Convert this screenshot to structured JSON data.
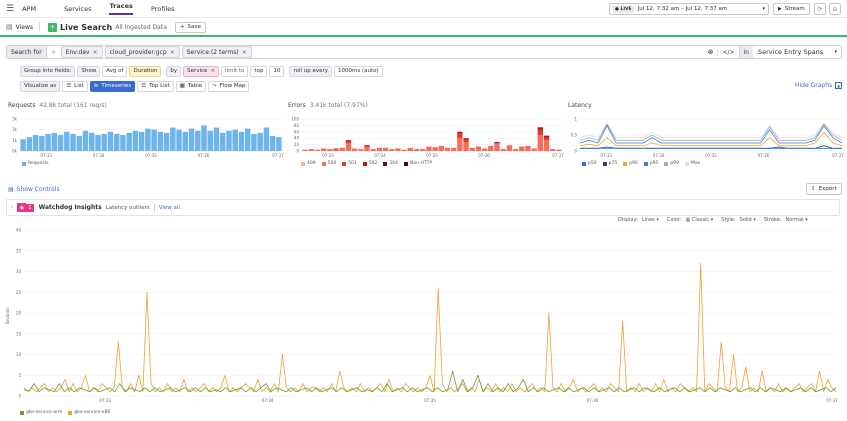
{
  "nav": {
    "app": "APM",
    "tabs": [
      "Services",
      "Traces",
      "Profiles"
    ],
    "active_tab": "Traces"
  },
  "time": {
    "live_badge": "LIVE",
    "range": "Jul 12, 7:32 am – Jul 12, 7:37 am",
    "stream_label": "Stream"
  },
  "header": {
    "views_label": "Views",
    "title": "Live Search",
    "subtitle": "All Ingested Data",
    "save_label": "Save"
  },
  "search": {
    "label": "Search for",
    "chips": [
      "Env:dev",
      "cloud_provider:gcp",
      "Service:(2 terms)"
    ],
    "in_label": "in",
    "scope": "Service Entry Spans"
  },
  "query": {
    "group_label": "Group into fields:",
    "show_label": "Show",
    "agg": "Avg of",
    "measure": "Duration",
    "by_label": "by",
    "by_value": "Service",
    "limit_label": "limit to",
    "top_label": "top",
    "top_value": "10",
    "rollup_label": "roll up every",
    "rollup_value": "1000ms (auto)",
    "visualize_label": "Visualize as",
    "viz": [
      "List",
      "Timeseries",
      "Top List",
      "Table",
      "Flow Map"
    ],
    "viz_active": "Timeseries",
    "hide_graphs": "Hide Graphs"
  },
  "panels": {
    "requests": {
      "title": "Requests",
      "summary": "42.8k total (161 req/s)"
    },
    "errors": {
      "title": "Errors",
      "summary": "3.41k total (7.97%)"
    },
    "latency": {
      "title": "Latency"
    }
  },
  "controls": {
    "show_controls": "Show Controls",
    "export": "Export"
  },
  "insights": {
    "count": "1",
    "title": "Watchdog Insights",
    "subtitle": "Latency outliers",
    "view_all": "View all"
  },
  "display_opts": {
    "display_label": "Display:",
    "display_value": "Lines",
    "color_label": "Color:",
    "color_value": "Classic",
    "style_label": "Style:",
    "style_value": "Solid",
    "stroke_label": "Stroke:",
    "stroke_value": "Normal"
  },
  "colors": {
    "accent": "#632ca6",
    "green": "#3eba6b",
    "blue": "#3c6bd0"
  },
  "chart_data": [
    {
      "id": "requests",
      "type": "bar",
      "x_ticks": [
        "07:33",
        "07:34",
        "07:35",
        "07:36",
        "07:37"
      ],
      "y_ticks": [
        "0k",
        "1k",
        "2k",
        "3k"
      ],
      "ylim": [
        0,
        3
      ],
      "series": [
        {
          "name": "Requests",
          "color": "#6cb4ee",
          "values": [
            1.1,
            1.3,
            1.5,
            1.4,
            1.6,
            1.7,
            1.5,
            1.8,
            1.6,
            1.4,
            1.9,
            1.7,
            1.5,
            1.6,
            1.8,
            1.6,
            1.5,
            1.7,
            1.9,
            1.8,
            2.1,
            2.0,
            1.8,
            1.7,
            2.2,
            2.0,
            1.8,
            2.1,
            1.9,
            2.4,
            1.9,
            2.2,
            1.7,
            1.9,
            2.0,
            1.8,
            2.1,
            1.6,
            1.7,
            2.2,
            1.4,
            1.3
          ]
        }
      ]
    },
    {
      "id": "errors",
      "type": "bar",
      "stacked": true,
      "x_ticks": [
        "07:33",
        "07:34",
        "07:35",
        "07:36",
        "07:37"
      ],
      "y_ticks": [
        "0",
        "20",
        "40",
        "60",
        "80",
        "100"
      ],
      "ylim": [
        0,
        100
      ],
      "series": [
        {
          "name": "409",
          "color": "#f9b79b",
          "values": [
            0,
            0,
            0,
            0,
            0,
            0,
            0,
            0,
            0,
            0,
            0,
            0,
            0,
            0,
            0,
            0,
            0,
            0,
            0,
            0,
            0,
            0,
            0,
            0,
            0,
            0,
            0,
            0,
            0,
            0,
            0,
            0,
            0,
            0,
            0,
            0,
            0,
            0,
            0,
            0,
            0,
            0
          ]
        },
        {
          "name": "500",
          "color": "#f46e5b",
          "values": [
            4,
            6,
            4,
            8,
            6,
            4,
            10,
            24,
            8,
            6,
            14,
            6,
            10,
            10,
            6,
            8,
            4,
            10,
            6,
            6,
            14,
            12,
            16,
            10,
            10,
            40,
            28,
            10,
            14,
            8,
            16,
            24,
            6,
            18,
            6,
            14,
            16,
            8,
            50,
            34,
            6,
            4
          ]
        },
        {
          "name": "501",
          "color": "#e23b2f",
          "values": [
            0,
            0,
            0,
            0,
            0,
            4,
            0,
            6,
            0,
            0,
            0,
            0,
            0,
            0,
            0,
            0,
            0,
            0,
            0,
            0,
            0,
            0,
            0,
            0,
            0,
            14,
            8,
            0,
            0,
            0,
            0,
            0,
            0,
            0,
            0,
            0,
            0,
            0,
            16,
            8,
            0,
            0
          ]
        },
        {
          "name": "502",
          "color": "#b8121b",
          "values": [
            0,
            0,
            0,
            0,
            0,
            0,
            0,
            4,
            0,
            0,
            4,
            0,
            0,
            0,
            0,
            0,
            0,
            0,
            0,
            0,
            0,
            0,
            0,
            0,
            0,
            6,
            4,
            0,
            0,
            0,
            0,
            4,
            0,
            0,
            0,
            0,
            0,
            0,
            8,
            6,
            0,
            0
          ]
        },
        {
          "name": "504",
          "color": "#7a0a11",
          "values": [
            0,
            0,
            0,
            0,
            0,
            0,
            0,
            0,
            0,
            0,
            0,
            0,
            0,
            0,
            0,
            0,
            0,
            0,
            0,
            0,
            0,
            0,
            0,
            0,
            0,
            0,
            0,
            0,
            0,
            0,
            0,
            0,
            0,
            0,
            0,
            0,
            0,
            0,
            0,
            0,
            0,
            0
          ]
        },
        {
          "name": "Non-HTTP",
          "color": "#4a0a0a",
          "values": [
            0,
            0,
            0,
            0,
            0,
            0,
            0,
            0,
            0,
            0,
            0,
            0,
            0,
            0,
            0,
            0,
            0,
            0,
            0,
            0,
            0,
            0,
            0,
            0,
            0,
            0,
            0,
            0,
            0,
            0,
            0,
            0,
            0,
            0,
            0,
            0,
            0,
            0,
            0,
            0,
            0,
            0
          ]
        }
      ]
    },
    {
      "id": "latency",
      "type": "line",
      "x_ticks": [
        "07:33",
        "07:34",
        "07:35",
        "07:36",
        "07:37"
      ],
      "y_ticks": [
        "0",
        "0.5",
        "1"
      ],
      "ylim": [
        0,
        1.2
      ],
      "series": [
        {
          "name": "p50",
          "color": "#1f77e0",
          "values": [
            0.1,
            0.1,
            0.1,
            0.1,
            0.1,
            0.1,
            0.1,
            0.1,
            0.1,
            0.1,
            0.1,
            0.1,
            0.1,
            0.1,
            0.1,
            0.1,
            0.1,
            0.1,
            0.1,
            0.1,
            0.1,
            0.1,
            0.1,
            0.1,
            0.1,
            0.1,
            0.1,
            0.1,
            0.1,
            0.1
          ]
        },
        {
          "name": "p75",
          "color": "#2c3e9e",
          "values": [
            0.1,
            0.1,
            0.1,
            0.15,
            0.1,
            0.1,
            0.1,
            0.1,
            0.1,
            0.1,
            0.1,
            0.1,
            0.1,
            0.1,
            0.1,
            0.1,
            0.1,
            0.1,
            0.1,
            0.1,
            0.1,
            0.1,
            0.15,
            0.1,
            0.1,
            0.1,
            0.1,
            0.2,
            0.1,
            0.1
          ]
        },
        {
          "name": "p90",
          "color": "#f5a623",
          "values": [
            0.2,
            0.25,
            0.2,
            0.5,
            0.2,
            0.2,
            0.2,
            0.2,
            0.3,
            0.2,
            0.2,
            0.2,
            0.2,
            0.2,
            0.2,
            0.2,
            0.2,
            0.2,
            0.2,
            0.2,
            0.2,
            0.5,
            0.2,
            0.2,
            0.2,
            0.2,
            0.3,
            0.7,
            0.3,
            0.2
          ]
        },
        {
          "name": "p95",
          "color": "#3b7ddd",
          "values": [
            0.3,
            0.4,
            0.3,
            0.95,
            0.3,
            0.3,
            0.3,
            0.3,
            0.5,
            0.3,
            0.3,
            0.3,
            0.3,
            0.3,
            0.3,
            0.3,
            0.3,
            0.3,
            0.3,
            0.3,
            0.3,
            0.8,
            0.3,
            0.3,
            0.3,
            0.3,
            0.4,
            0.95,
            0.5,
            0.3
          ]
        },
        {
          "name": "p99",
          "color": "#aaaaaa",
          "values": [
            0.4,
            0.5,
            0.4,
            1.0,
            0.4,
            0.4,
            0.4,
            0.4,
            0.6,
            0.4,
            0.4,
            0.4,
            0.4,
            0.4,
            0.4,
            0.4,
            0.4,
            0.4,
            0.4,
            0.4,
            0.4,
            0.9,
            0.4,
            0.4,
            0.4,
            0.4,
            0.5,
            1.0,
            0.6,
            0.4
          ]
        },
        {
          "name": "Max",
          "color": "#dddddd",
          "values": [
            0.5,
            0.6,
            0.5,
            1.05,
            0.5,
            0.5,
            0.5,
            0.5,
            0.7,
            0.5,
            0.5,
            0.5,
            0.5,
            0.5,
            0.5,
            0.5,
            0.5,
            0.5,
            0.5,
            0.5,
            0.5,
            0.95,
            0.5,
            0.5,
            0.5,
            0.5,
            0.6,
            1.05,
            0.7,
            0.5
          ]
        }
      ]
    },
    {
      "id": "main",
      "type": "line",
      "ylabel": "Seconds",
      "x_ticks": [
        "07:33",
        "07:34",
        "07:35",
        "07:36",
        "07:37"
      ],
      "y_ticks": [
        "0",
        "5",
        "10",
        "15",
        "20",
        "25",
        "30",
        "35",
        "40"
      ],
      "ylim": [
        0,
        40
      ],
      "series": [
        {
          "name": "gke-service-arm",
          "color": "#6a9a3c",
          "values": [
            1.5,
            1.2,
            3,
            1,
            2,
            1.5,
            1,
            3,
            1,
            2,
            1,
            2,
            1.5,
            1,
            2,
            1,
            1.5,
            2,
            1,
            3,
            1,
            2,
            1.5,
            1,
            2,
            1,
            2,
            1,
            1.5,
            2,
            1,
            1.5,
            2,
            1,
            2,
            1,
            2,
            1,
            1.5,
            1,
            2,
            1,
            1.5,
            2,
            1,
            2,
            1,
            2,
            3,
            1,
            2,
            1.5,
            1,
            2,
            1,
            1.5,
            2,
            1,
            2,
            1,
            1.5,
            2,
            1,
            2,
            1,
            1.5,
            2,
            1,
            1.5,
            1,
            2,
            1,
            3,
            1,
            1.5,
            2,
            1,
            2,
            1,
            1.5,
            2,
            1,
            2,
            1,
            1.5,
            6,
            1,
            4,
            1,
            2,
            5,
            1,
            3,
            1,
            2,
            1,
            3,
            1,
            2,
            4,
            1,
            2,
            1,
            2,
            1,
            1.5,
            2,
            1,
            2,
            1,
            1.5,
            2,
            1,
            2,
            1,
            1.5,
            2,
            1,
            2,
            1,
            1.5,
            2,
            1,
            2,
            1.5,
            1,
            2,
            1,
            1.5,
            2,
            1,
            2,
            1,
            1.5,
            2,
            1,
            2,
            1,
            2,
            1.5,
            1,
            2,
            1,
            1.5,
            2,
            1,
            2,
            1,
            2,
            1.5,
            1,
            2,
            1,
            1.5,
            2,
            1,
            2,
            1,
            1.5,
            2,
            1,
            2
          ]
        },
        {
          "name": "gke-service-x86",
          "color": "#f0a030",
          "values": [
            2,
            1,
            2,
            1,
            2,
            3,
            1,
            2,
            1,
            2,
            4,
            1,
            3,
            1,
            2,
            5,
            1,
            2,
            1,
            3,
            2,
            1,
            2,
            13,
            2,
            1,
            3,
            1,
            5,
            1,
            25,
            3,
            1,
            2,
            1,
            3,
            1,
            2,
            1,
            4,
            1,
            2,
            1,
            2,
            3,
            1,
            2,
            1,
            2,
            5,
            1,
            2,
            1,
            2,
            3,
            2,
            1,
            4,
            1,
            2,
            1,
            3,
            1,
            10,
            2,
            1,
            2,
            1,
            3,
            1,
            2,
            2,
            1,
            2,
            1,
            3,
            1,
            6,
            2,
            1,
            2,
            1,
            3,
            1,
            2,
            1,
            2,
            3,
            1,
            4,
            1,
            2,
            1,
            3,
            2,
            1,
            2,
            1,
            2,
            5,
            1,
            26,
            3,
            1,
            2,
            1,
            2,
            3,
            1,
            2,
            1,
            4,
            1,
            2,
            1,
            3,
            1,
            2,
            1,
            3,
            1,
            2,
            1,
            2,
            3,
            1,
            2,
            1,
            20,
            2,
            1,
            3,
            1,
            2,
            4,
            1,
            2,
            1,
            2,
            3,
            1,
            2,
            1,
            3,
            2,
            1,
            18,
            1,
            2,
            1,
            3,
            1,
            2,
            1,
            3,
            1,
            4,
            1,
            2,
            1,
            3,
            2,
            1,
            2,
            1,
            32,
            1,
            3,
            2,
            1,
            13,
            2,
            1,
            10,
            1,
            2,
            7,
            1,
            2,
            1,
            6,
            1,
            2,
            1,
            3,
            1,
            2,
            1,
            2,
            3,
            1,
            2,
            3,
            1,
            6,
            1,
            4,
            2,
            1
          ]
        }
      ]
    }
  ]
}
